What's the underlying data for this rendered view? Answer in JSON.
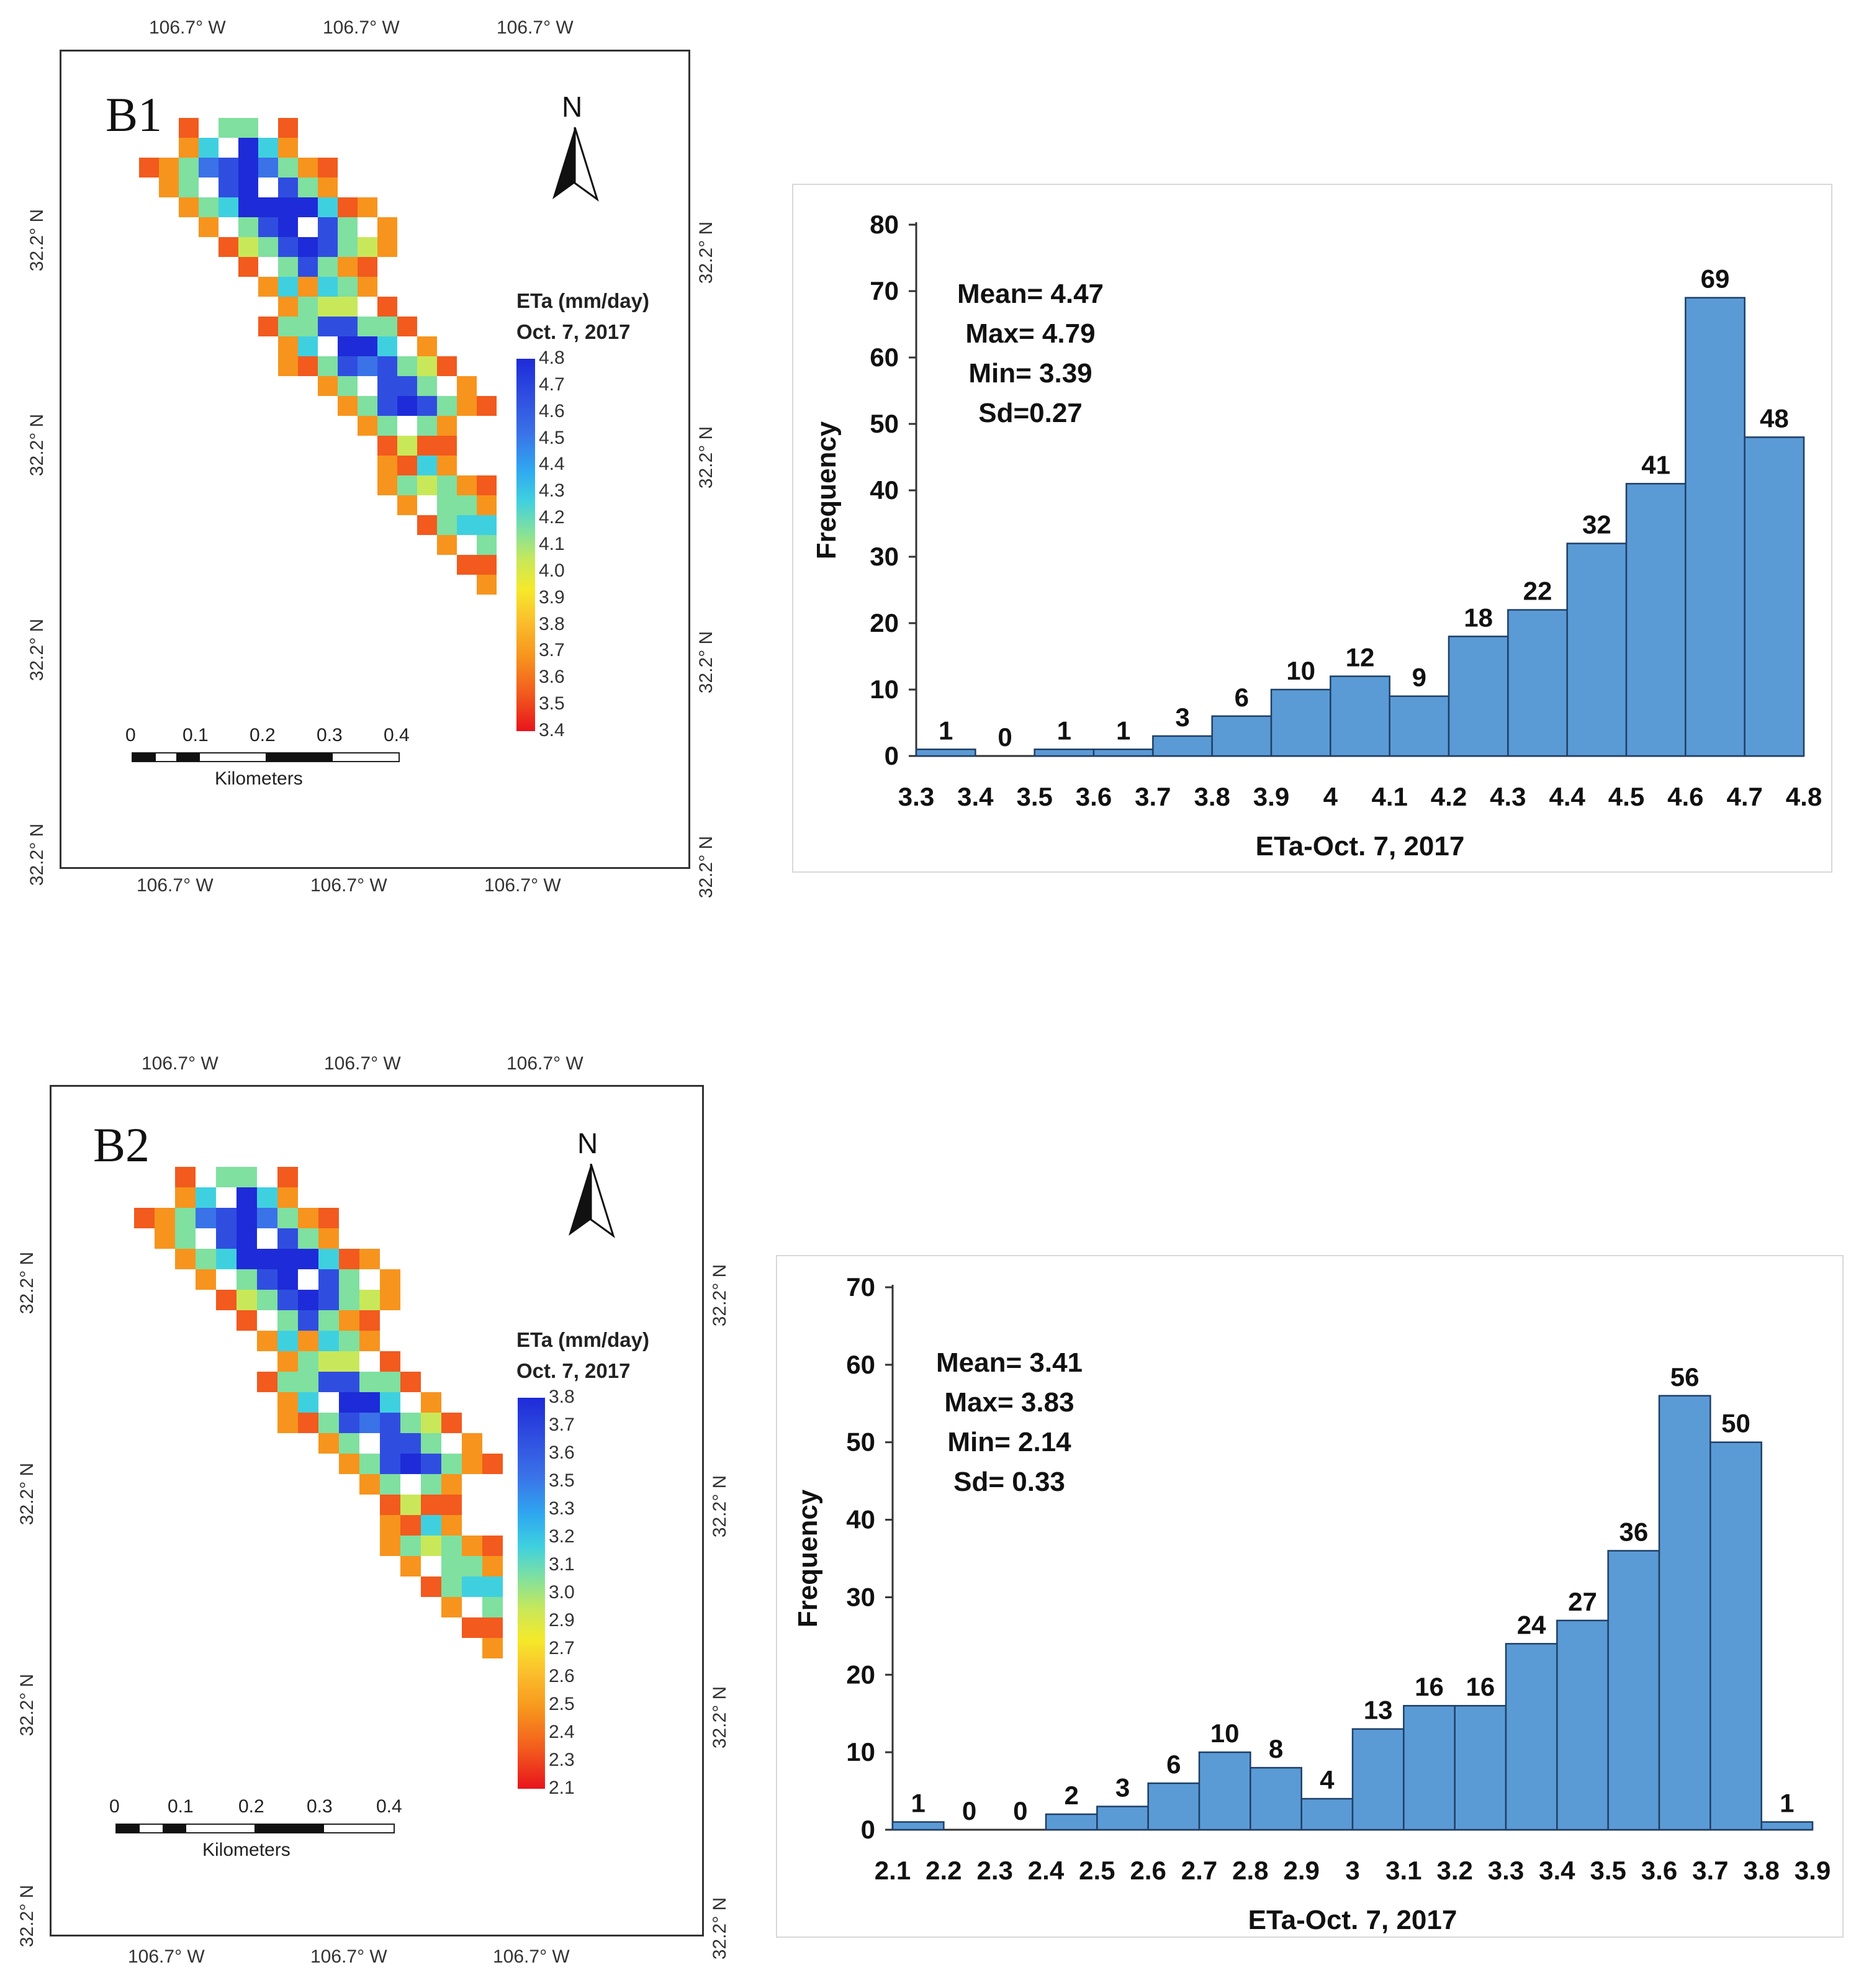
{
  "maps": [
    {
      "label": "B1",
      "top_lon": [
        "106.7° W",
        "106.7° W",
        "106.7° W"
      ],
      "bottom_lon": [
        "106.7° W",
        "106.7° W",
        "106.7° W"
      ],
      "left_lat": [
        "32.2° N",
        "32.2° N",
        "32.2° N",
        "32.2° N"
      ],
      "right_lat": [
        "32.2° N",
        "32.2° N",
        "32.2° N",
        "32.2° N"
      ],
      "north": "N",
      "legend_title_1": "ETa (mm/day)",
      "legend_title_2": "Oct. 7, 2017",
      "legend_ticks": [
        "4.8",
        "4.7",
        "4.6",
        "4.5",
        "4.4",
        "4.3",
        "4.2",
        "4.1",
        "4.0",
        "3.9",
        "3.8",
        "3.7",
        "3.6",
        "3.5",
        "3.4"
      ],
      "scale_ticks": [
        "0",
        "0.1",
        "0.2",
        "0.3",
        "0.4"
      ],
      "scale_label": "Kilometers"
    },
    {
      "label": "B2",
      "top_lon": [
        "106.7° W",
        "106.7° W",
        "106.7° W"
      ],
      "bottom_lon": [
        "106.7° W",
        "106.7° W",
        "106.7° W"
      ],
      "left_lat": [
        "32.2° N",
        "32.2° N",
        "32.2° N",
        "32.2° N"
      ],
      "right_lat": [
        "32.2° N",
        "32.2° N",
        "32.2° N",
        "32.2° N"
      ],
      "north": "N",
      "legend_title_1": "ETa (mm/day)",
      "legend_title_2": "Oct. 7, 2017",
      "legend_ticks": [
        "3.8",
        "3.7",
        "3.6",
        "3.5",
        "3.3",
        "3.2",
        "3.1",
        "3.0",
        "2.9",
        "2.7",
        "2.6",
        "2.5",
        "2.4",
        "2.3",
        "2.1"
      ],
      "scale_ticks": [
        "0",
        "0.1",
        "0.2",
        "0.3",
        "0.4"
      ],
      "scale_label": "Kilometers"
    }
  ],
  "colors": {
    "bar_fill": "#5b9bd5",
    "bar_stroke": "#1f3f66",
    "axis": "#333333",
    "ramp": [
      "#e8141c",
      "#f25a1e",
      "#f7941d",
      "#fbc02d",
      "#f5e92a",
      "#c8e85a",
      "#7fe0a0",
      "#3fd0e0",
      "#2fa8f0",
      "#3a72e8",
      "#2f4ee0",
      "#1e2bd8"
    ]
  },
  "chart_data": [
    {
      "type": "bar",
      "title": "",
      "xlabel": "ETa-Oct. 7, 2017",
      "ylabel": "Frequency",
      "ylim": [
        0,
        80
      ],
      "yticks": [
        "0",
        "10",
        "20",
        "30",
        "40",
        "50",
        "60",
        "70",
        "80"
      ],
      "bin_edges": [
        "3.3",
        "3.4",
        "3.5",
        "3.6",
        "3.7",
        "3.8",
        "3.9",
        "4",
        "4.1",
        "4.2",
        "4.3",
        "4.4",
        "4.5",
        "4.6",
        "4.7",
        "4.8"
      ],
      "values": [
        1,
        0,
        1,
        1,
        3,
        6,
        10,
        12,
        9,
        18,
        22,
        32,
        41,
        69,
        48
      ],
      "stats": [
        "Mean= 4.47",
        "Max= 4.79",
        "Min= 3.39",
        "Sd=0.27"
      ]
    },
    {
      "type": "bar",
      "title": "",
      "xlabel": "ETa-Oct. 7, 2017",
      "ylabel": "Frequency",
      "ylim": [
        0,
        70
      ],
      "yticks": [
        "0",
        "10",
        "20",
        "30",
        "40",
        "50",
        "60",
        "70"
      ],
      "bin_edges": [
        "2.1",
        "2.2",
        "2.3",
        "2.4",
        "2.5",
        "2.6",
        "2.7",
        "2.8",
        "2.9",
        "3",
        "3.1",
        "3.2",
        "3.3",
        "3.4",
        "3.5",
        "3.6",
        "3.7",
        "3.8",
        "3.9"
      ],
      "values": [
        1,
        0,
        0,
        2,
        3,
        6,
        10,
        8,
        4,
        13,
        16,
        16,
        24,
        27,
        36,
        56,
        50,
        1
      ],
      "stats": [
        "Mean= 3.41",
        "Max= 3.83",
        "Min= 2.14",
        "Sd= 0.33"
      ]
    }
  ]
}
